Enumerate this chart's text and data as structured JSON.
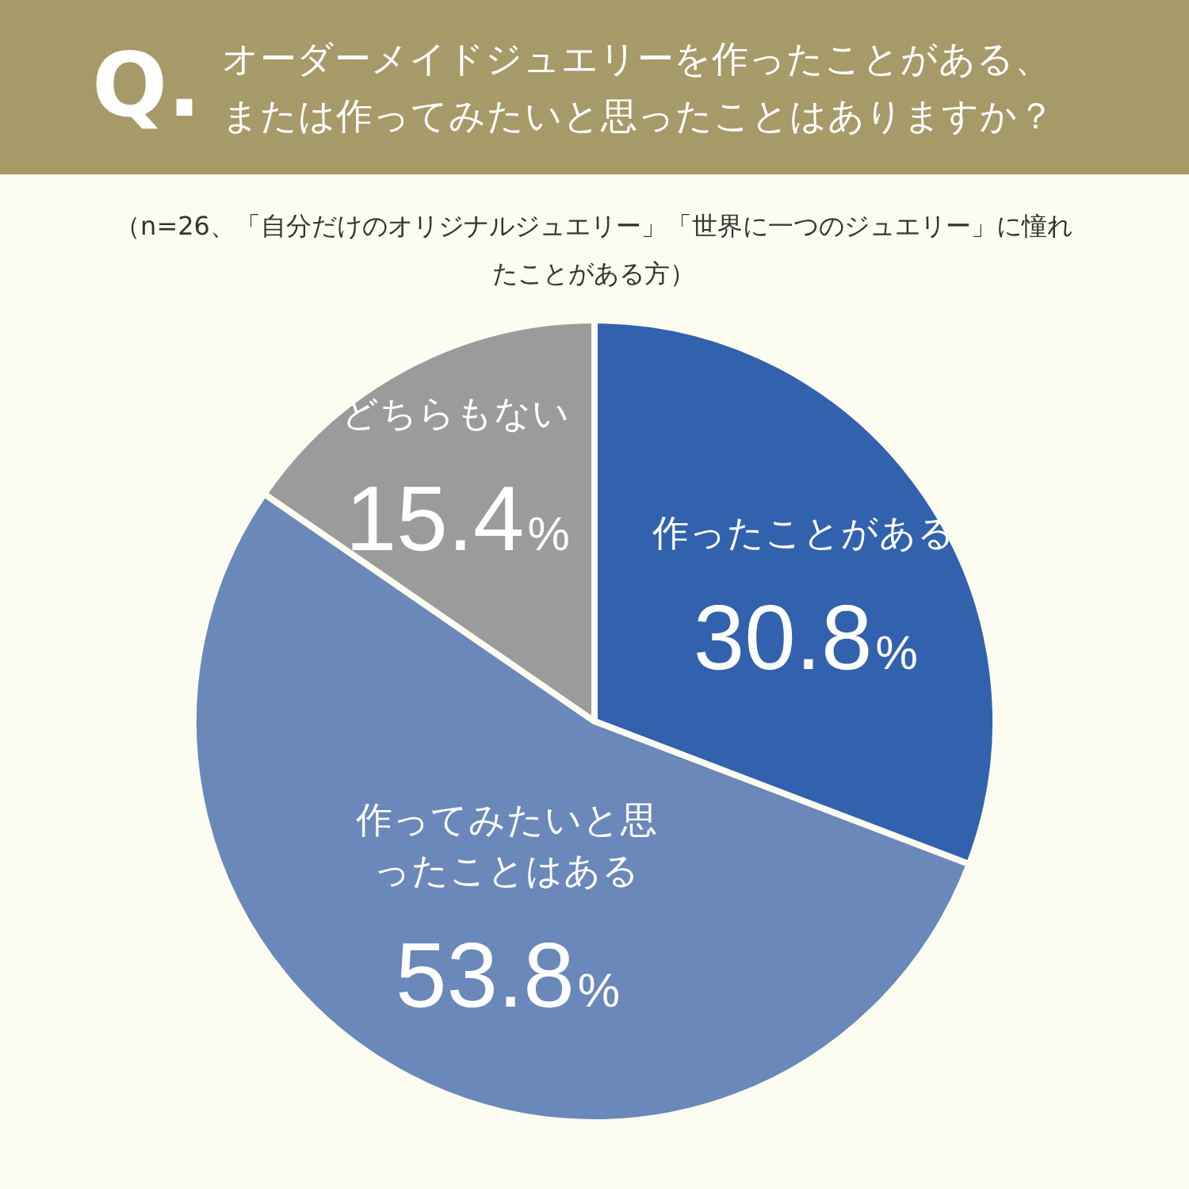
{
  "chart_data": {
    "type": "pie",
    "title": "オーダーメイドジュエリーを作ったことがある、または作ってみたいと思ったことはありますか？",
    "subtitle": "（n=26、「自分だけのオリジナルジュエリー」「世界に一つのジュエリー」に憧れたことがある方）",
    "annotations": [
      "Q."
    ],
    "categories": [
      "作ったことがある",
      "作ってみたいと思ったことはある",
      "どちらもない"
    ],
    "values": [
      30.8,
      53.8,
      15.4
    ],
    "value_labels": [
      "30.8%",
      "53.8%",
      "15.4%"
    ],
    "colors": [
      "#3262ad",
      "#6a88b9",
      "#9b9b9b"
    ],
    "legend": false
  }
}
